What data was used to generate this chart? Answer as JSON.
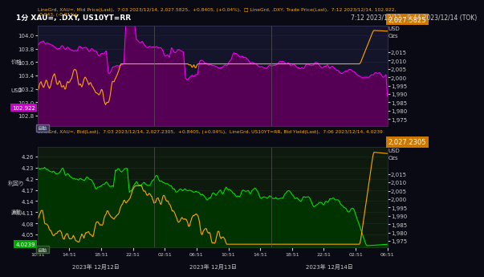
{
  "title": "1分 XAU=, .DXY, US10YT=RR",
  "time_label": "7:12 2023/12/12 - 9:44 2023/12/14 (TOK)",
  "panel1_legend": "LineGrd, XAU=, Mid Price(Last),  7:03 2023/12/14, 2,027.5825,  +0.8405, (+0.04%),  □ LineGrd, .DXY, Trade Price(Last),  7:12 2023/12/14, 102.922,\n-0.943, (-0.91%)",
  "panel2_legend": "LineGrd, XAU=, Bid(Last),  7:03 2023/12/14, 2,027.2305,  +0.8405, (+0.04%),  LineGrd, US10YT=RR, Bid Yield(Last),  7:06 2023/12/14, 4.0239",
  "p1_left_label1": "价格",
  "p1_left_label2": "USD",
  "p2_left_label1": "利回り",
  "p2_left_label2": "直動",
  "dxy_yticks": [
    102.8,
    103.0,
    103.2,
    103.4,
    103.6,
    103.8,
    104.0
  ],
  "xau_right_yticks": [
    1975,
    1980,
    1985,
    1990,
    1995,
    2000,
    2005,
    2010,
    2015
  ],
  "yield_yticks": [
    4.05,
    4.08,
    4.11,
    4.14,
    4.17,
    4.2,
    4.23,
    4.26
  ],
  "xau_right_yticks2": [
    1975,
    1980,
    1985,
    1990,
    1995,
    2000,
    2005,
    2010,
    2015
  ],
  "dxy_color": "#ff00ff",
  "xau1_color": "#ffa500",
  "yield_color": "#00ee00",
  "xau2_color": "#ffa500",
  "fill_dxy_color": "#550055",
  "fill_yield_color": "#003300",
  "bg1": "#14142a",
  "bg2": "#0d1a0d",
  "bg_outer": "#0a0a14",
  "grid_color1": "#2a2a50",
  "grid_color2": "#1a3a1a",
  "text_color": "#cccccc",
  "orange_box_color": "#cc7700",
  "magenta_box_color": "#cc00cc",
  "green_box_color": "#00aa00",
  "p1_dxy_current": 102.922,
  "p1_xau_current": 2027.5825,
  "p2_yield_current": 4.0239,
  "p2_xau_current": 2027.2305,
  "xticklabels": [
    "10:51",
    "14:51",
    "18:51",
    "22:51",
    "02:51",
    "06:51",
    "10:51",
    "14:51",
    "18:51",
    "22:51",
    "02:51",
    "06:51"
  ],
  "xdatelabels": [
    "2023年 12月12日",
    "2023年 12月13日",
    "2023年 12月14日"
  ]
}
